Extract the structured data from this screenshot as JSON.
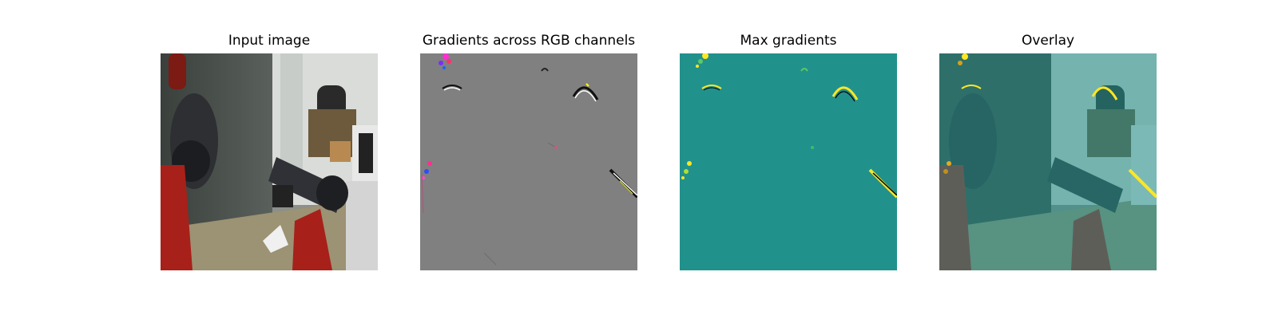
{
  "figure": {
    "panels": [
      {
        "title": "Input image"
      },
      {
        "title": "Gradients across RGB channels"
      },
      {
        "title": "Max gradients"
      },
      {
        "title": "Overlay"
      }
    ]
  },
  "colors": {
    "gradient_bg": "#808080",
    "max_gradient_bg": "#21918c",
    "max_gradient_high": "#fde725",
    "overlay_tint": "#21918c",
    "robot_red": "#a8201a"
  }
}
